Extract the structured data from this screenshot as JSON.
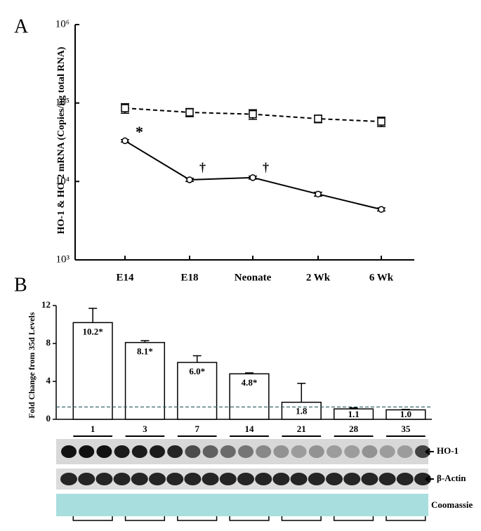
{
  "chart_data": [
    {
      "type": "line",
      "label": "A",
      "ylabel": "HO-1 & HO-2 mRNA (Copies/ng total RNA)",
      "categories": [
        "E14",
        "E18",
        "Neonate",
        "2 Wk",
        "6 Wk"
      ],
      "log_scale": true,
      "ylim": [
        1000,
        1000000
      ],
      "yticks": [
        {
          "value": 1000,
          "label": "10³"
        },
        {
          "value": 10000,
          "label": "10⁴"
        },
        {
          "value": 100000,
          "label": "10⁵"
        },
        {
          "value": 1000000,
          "label": "10⁶"
        }
      ],
      "series": [
        {
          "color": "#000000",
          "linestyle": "dashed",
          "values": [
            86000,
            76000,
            72000,
            63000,
            58000
          ],
          "errors": [
            12000,
            9000,
            10000,
            7000,
            8000
          ]
        },
        {
          "color": "#000000",
          "linestyle": "solid",
          "values": [
            33000,
            10500,
            11200,
            6900,
            4400
          ],
          "errors": [
            1200,
            500,
            500,
            400,
            200
          ]
        }
      ],
      "annotations": [
        "*",
        "†",
        "†"
      ]
    },
    {
      "type": "bar",
      "label": "B",
      "ylabel": "Fold Change from 35d Levels",
      "categories": [
        "1",
        "3",
        "7",
        "14",
        "21",
        "28",
        "35"
      ],
      "values": [
        10.2,
        8.1,
        6.0,
        4.8,
        1.8,
        1.1,
        1.0
      ],
      "value_labels": [
        "10.2*",
        "8.1*",
        "6.0*",
        "4.8*",
        "1.8",
        "1.1",
        "1.0"
      ],
      "errors": [
        1.5,
        0.2,
        0.7,
        0.1,
        2.0,
        0.1,
        0.05
      ],
      "color": "#ffffff",
      "reference_line": 1.3,
      "ylim": [
        0,
        12
      ],
      "yticks": [
        0,
        4,
        8,
        12
      ],
      "blot_labels": [
        "HO-1",
        "β-Actin",
        "Coomassie"
      ]
    }
  ]
}
